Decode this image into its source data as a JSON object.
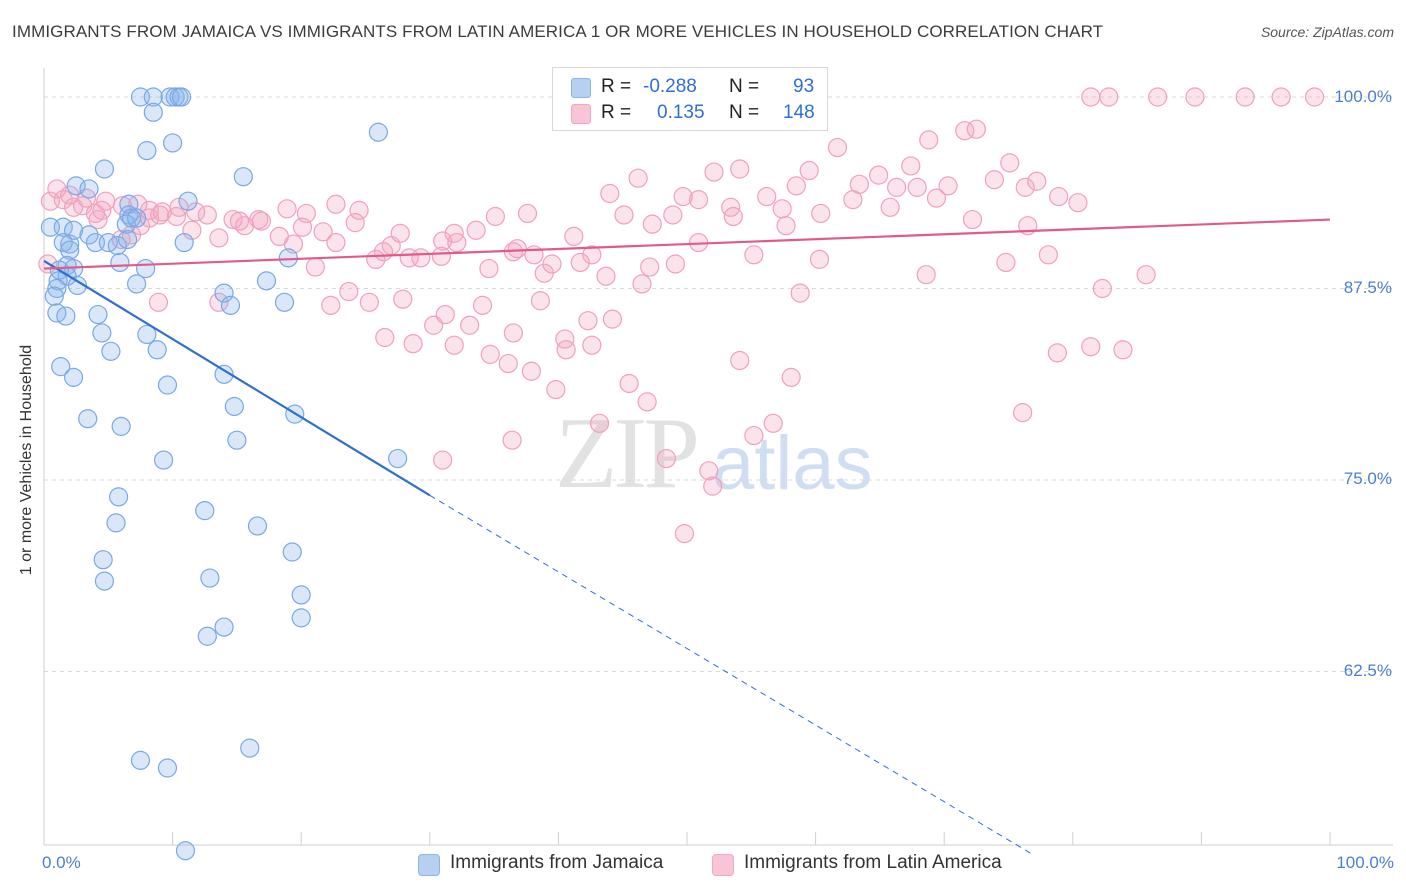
{
  "title": "IMMIGRANTS FROM JAMAICA VS IMMIGRANTS FROM LATIN AMERICA 1 OR MORE VEHICLES IN HOUSEHOLD CORRELATION CHART",
  "source": "Source: ZipAtlas.com",
  "watermark": {
    "zip": "ZIP",
    "atlas": "atlas"
  },
  "legend_top": [
    {
      "r_label": "R =",
      "r_value": "-0.288",
      "n_label": "N =",
      "n_value": "93"
    },
    {
      "r_label": "R =",
      "r_value": "0.135",
      "n_label": "N =",
      "n_value": "148"
    }
  ],
  "chart_data": {
    "type": "scatter",
    "title": "IMMIGRANTS FROM JAMAICA VS IMMIGRANTS FROM LATIN AMERICA 1 OR MORE VEHICLES IN HOUSEHOLD CORRELATION CHART",
    "xlabel": "",
    "ylabel": "1 or more Vehicles in Household",
    "xlim": [
      0,
      100
    ],
    "ylim": [
      50,
      101
    ],
    "x_tick_labels": [
      "0.0%",
      "100.0%"
    ],
    "y_ticks": [
      100.0,
      87.5,
      75.0,
      62.5
    ],
    "y_tick_labels": [
      "100.0%",
      "87.5%",
      "75.0%",
      "62.5%"
    ],
    "grid": true,
    "legend_position": "bottom",
    "colors": {
      "jamaica": "#8ab4ea",
      "latin": "#f2a8c1",
      "jamaica_line": "#2f6fd0",
      "latin_line": "#e05a8a"
    },
    "series": [
      {
        "name": "Immigrants from Jamaica",
        "r": -0.288,
        "n": 93,
        "trend": {
          "x0": 0,
          "y0": 89.3,
          "x1": 30,
          "y1": 74.0,
          "dash_to_x": 77,
          "dash_to_y": 50.5
        },
        "points": [
          [
            7.5,
            100
          ],
          [
            8.5,
            100
          ],
          [
            9.8,
            100
          ],
          [
            10.2,
            100
          ],
          [
            10.5,
            100
          ],
          [
            10.7,
            100
          ],
          [
            8.5,
            99
          ],
          [
            26,
            97.7
          ],
          [
            10,
            97
          ],
          [
            8,
            96.5
          ],
          [
            4.7,
            95.3
          ],
          [
            15.5,
            94.8
          ],
          [
            2.5,
            94.2
          ],
          [
            3.5,
            94
          ],
          [
            11.2,
            93.2
          ],
          [
            6.6,
            93
          ],
          [
            6.6,
            92.3
          ],
          [
            6.4,
            91.7
          ],
          [
            6.8,
            92.1
          ],
          [
            7.2,
            92.1
          ],
          [
            0.5,
            91.5
          ],
          [
            1.5,
            91.5
          ],
          [
            2.3,
            91.3
          ],
          [
            3.5,
            91
          ],
          [
            4,
            90.5
          ],
          [
            5,
            90.5
          ],
          [
            5.7,
            90.3
          ],
          [
            6.5,
            90.7
          ],
          [
            2,
            90.4
          ],
          [
            1.5,
            90.5
          ],
          [
            2,
            90
          ],
          [
            2.3,
            88.8
          ],
          [
            1.8,
            89
          ],
          [
            1.2,
            88.7
          ],
          [
            1.8,
            88.3
          ],
          [
            1.1,
            88
          ],
          [
            2.6,
            87.7
          ],
          [
            7.2,
            87.8
          ],
          [
            5.9,
            89.2
          ],
          [
            7.9,
            88.8
          ],
          [
            10.9,
            90.5
          ],
          [
            19,
            89.5
          ],
          [
            17.3,
            88
          ],
          [
            1,
            87.5
          ],
          [
            0.8,
            87
          ],
          [
            14,
            87.2
          ],
          [
            14.5,
            86.4
          ],
          [
            18.7,
            86.6
          ],
          [
            1,
            85.9
          ],
          [
            1.7,
            85.7
          ],
          [
            4.2,
            85.8
          ],
          [
            4.5,
            84.6
          ],
          [
            8,
            84.5
          ],
          [
            8.8,
            83.5
          ],
          [
            5.2,
            83.4
          ],
          [
            1.3,
            82.4
          ],
          [
            2.3,
            81.7
          ],
          [
            9.6,
            81.2
          ],
          [
            14,
            81.9
          ],
          [
            14.8,
            79.8
          ],
          [
            19.5,
            79.3
          ],
          [
            3.4,
            79
          ],
          [
            6,
            78.5
          ],
          [
            15,
            77.6
          ],
          [
            9.3,
            76.3
          ],
          [
            27.5,
            76.4
          ],
          [
            5.8,
            73.9
          ],
          [
            12.5,
            73
          ],
          [
            5.6,
            72.2
          ],
          [
            16.6,
            72
          ],
          [
            19.3,
            70.3
          ],
          [
            4.6,
            69.8
          ],
          [
            12.9,
            68.6
          ],
          [
            4.7,
            68.4
          ],
          [
            20,
            67.5
          ],
          [
            14,
            65.4
          ],
          [
            12.7,
            64.8
          ],
          [
            20,
            66
          ],
          [
            16,
            57.5
          ],
          [
            7.5,
            56.7
          ],
          [
            9.6,
            56.2
          ],
          [
            11,
            50.8
          ]
        ]
      },
      {
        "name": "Immigrants from Latin America",
        "r": 0.135,
        "n": 148,
        "trend": {
          "x0": 0,
          "y0": 88.8,
          "x1": 100,
          "y1": 92.0
        },
        "points": [
          [
            0.5,
            93.2
          ],
          [
            1.5,
            93.3
          ],
          [
            2.3,
            92.8
          ],
          [
            3,
            92.9
          ],
          [
            4,
            92.4
          ],
          [
            4.5,
            92.6
          ],
          [
            4.2,
            92
          ],
          [
            6,
            90.7
          ],
          [
            6.8,
            91
          ],
          [
            7.5,
            91.6
          ],
          [
            8.2,
            92.1
          ],
          [
            9,
            92.3
          ],
          [
            10.5,
            92.8
          ],
          [
            11.8,
            92.5
          ],
          [
            12.7,
            92.3
          ],
          [
            14.7,
            92
          ],
          [
            15.6,
            91.6
          ],
          [
            16.7,
            92
          ],
          [
            18.3,
            90.9
          ],
          [
            19.4,
            90.4
          ],
          [
            20.1,
            91.5
          ],
          [
            21.7,
            91.2
          ],
          [
            22.7,
            90.5
          ],
          [
            24.5,
            92.6
          ],
          [
            25.8,
            89.4
          ],
          [
            27,
            90.3
          ],
          [
            27.7,
            91.1
          ],
          [
            29.3,
            89.5
          ],
          [
            31,
            90.6
          ],
          [
            31.9,
            91.1
          ],
          [
            33.6,
            91.3
          ],
          [
            35.1,
            92.2
          ],
          [
            36.5,
            89.9
          ],
          [
            37.6,
            92.4
          ],
          [
            38.1,
            89.7
          ],
          [
            39.5,
            89.1
          ],
          [
            41.2,
            90.9
          ],
          [
            42.6,
            89.7
          ],
          [
            44,
            93.7
          ],
          [
            45.1,
            92.3
          ],
          [
            46.2,
            94.7
          ],
          [
            47.3,
            91.7
          ],
          [
            48.9,
            92.3
          ],
          [
            49.7,
            93.5
          ],
          [
            50.9,
            90.5
          ],
          [
            52.1,
            95.1
          ],
          [
            53.4,
            92.8
          ],
          [
            54.1,
            95.3
          ],
          [
            56.2,
            93.5
          ],
          [
            57.4,
            92.7
          ],
          [
            58.5,
            94.2
          ],
          [
            59.5,
            95.2
          ],
          [
            60.4,
            92.4
          ],
          [
            61.7,
            96.7
          ],
          [
            62.9,
            93.3
          ],
          [
            64.9,
            94.9
          ],
          [
            66.3,
            94.1
          ],
          [
            67.4,
            95.5
          ],
          [
            68.8,
            97.2
          ],
          [
            70.3,
            94.2
          ],
          [
            71.6,
            97.8
          ],
          [
            72.5,
            97.9
          ],
          [
            73.9,
            94.6
          ],
          [
            75.1,
            95.7
          ],
          [
            76.3,
            94.1
          ],
          [
            77.2,
            94.5
          ],
          [
            78.9,
            93.5
          ],
          [
            80.4,
            93.1
          ],
          [
            81.4,
            100
          ],
          [
            82.8,
            100
          ],
          [
            86.6,
            100
          ],
          [
            89.5,
            100
          ],
          [
            93.4,
            100
          ],
          [
            96.2,
            100
          ],
          [
            98.8,
            100
          ],
          [
            1,
            94
          ],
          [
            2,
            93.6
          ],
          [
            3.3,
            93.4
          ],
          [
            4.8,
            93.2
          ],
          [
            6.1,
            92.9
          ],
          [
            7.3,
            93
          ],
          [
            8.2,
            92.6
          ],
          [
            9.2,
            92.5
          ],
          [
            10.3,
            92.2
          ],
          [
            11.5,
            91.3
          ],
          [
            13.6,
            90.8
          ],
          [
            15.2,
            91.9
          ],
          [
            16.9,
            91.9
          ],
          [
            18.9,
            92.7
          ],
          [
            20.4,
            92.4
          ],
          [
            22.7,
            93
          ],
          [
            24.2,
            91.8
          ],
          [
            26.4,
            89.9
          ],
          [
            28.4,
            89.5
          ],
          [
            30.9,
            89.6
          ],
          [
            32.1,
            90.5
          ],
          [
            34.6,
            88.8
          ],
          [
            36.8,
            90.1
          ],
          [
            38.9,
            88.5
          ],
          [
            41.7,
            89.2
          ],
          [
            43.7,
            88.3
          ],
          [
            47.1,
            88.9
          ],
          [
            49.1,
            89.1
          ],
          [
            50.9,
            93.3
          ],
          [
            53.6,
            92.2
          ],
          [
            55.2,
            89.7
          ],
          [
            57.7,
            91.6
          ],
          [
            60.3,
            89.4
          ],
          [
            63.4,
            94.3
          ],
          [
            65.8,
            92.8
          ],
          [
            67.9,
            94.1
          ],
          [
            69.4,
            93.4
          ],
          [
            72.2,
            92
          ],
          [
            74.8,
            89.2
          ],
          [
            76.5,
            91.6
          ],
          [
            78.1,
            89.7
          ],
          [
            21.1,
            88.9
          ],
          [
            22.3,
            86.4
          ],
          [
            23.7,
            87.3
          ],
          [
            25.3,
            86.6
          ],
          [
            27.9,
            86.8
          ],
          [
            30.3,
            85.1
          ],
          [
            31.2,
            85.8
          ],
          [
            33.1,
            85.1
          ],
          [
            34.1,
            86.4
          ],
          [
            36.5,
            84.6
          ],
          [
            38.6,
            86.7
          ],
          [
            40.5,
            84.2
          ],
          [
            42.3,
            85.4
          ],
          [
            44.2,
            85.5
          ],
          [
            46.5,
            87.8
          ],
          [
            13.6,
            86.6
          ],
          [
            8.9,
            86.6
          ],
          [
            26.5,
            84.3
          ],
          [
            28.7,
            83.9
          ],
          [
            31.9,
            83.8
          ],
          [
            34.7,
            83.2
          ],
          [
            36.1,
            82.6
          ],
          [
            37.9,
            82.1
          ],
          [
            40.6,
            83.5
          ],
          [
            42.6,
            83.8
          ],
          [
            45.5,
            81.3
          ],
          [
            46.9,
            80.1
          ],
          [
            39.8,
            80.9
          ],
          [
            43.2,
            78.7
          ],
          [
            48.4,
            76.4
          ],
          [
            51.7,
            75.6
          ],
          [
            52,
            74.6
          ],
          [
            49.8,
            71.5
          ],
          [
            54.1,
            82.8
          ],
          [
            58.1,
            81.7
          ],
          [
            55.2,
            77.9
          ],
          [
            56.7,
            78.7
          ],
          [
            36.4,
            77.6
          ],
          [
            31,
            76.3
          ],
          [
            76.1,
            79.4
          ],
          [
            81.4,
            83.7
          ],
          [
            78.8,
            83.3
          ],
          [
            83.9,
            83.5
          ],
          [
            82.3,
            87.5
          ],
          [
            58.8,
            87.2
          ],
          [
            85.7,
            88.4
          ],
          [
            68.6,
            88.4
          ],
          [
            0.3,
            89.1
          ]
        ]
      }
    ]
  }
}
